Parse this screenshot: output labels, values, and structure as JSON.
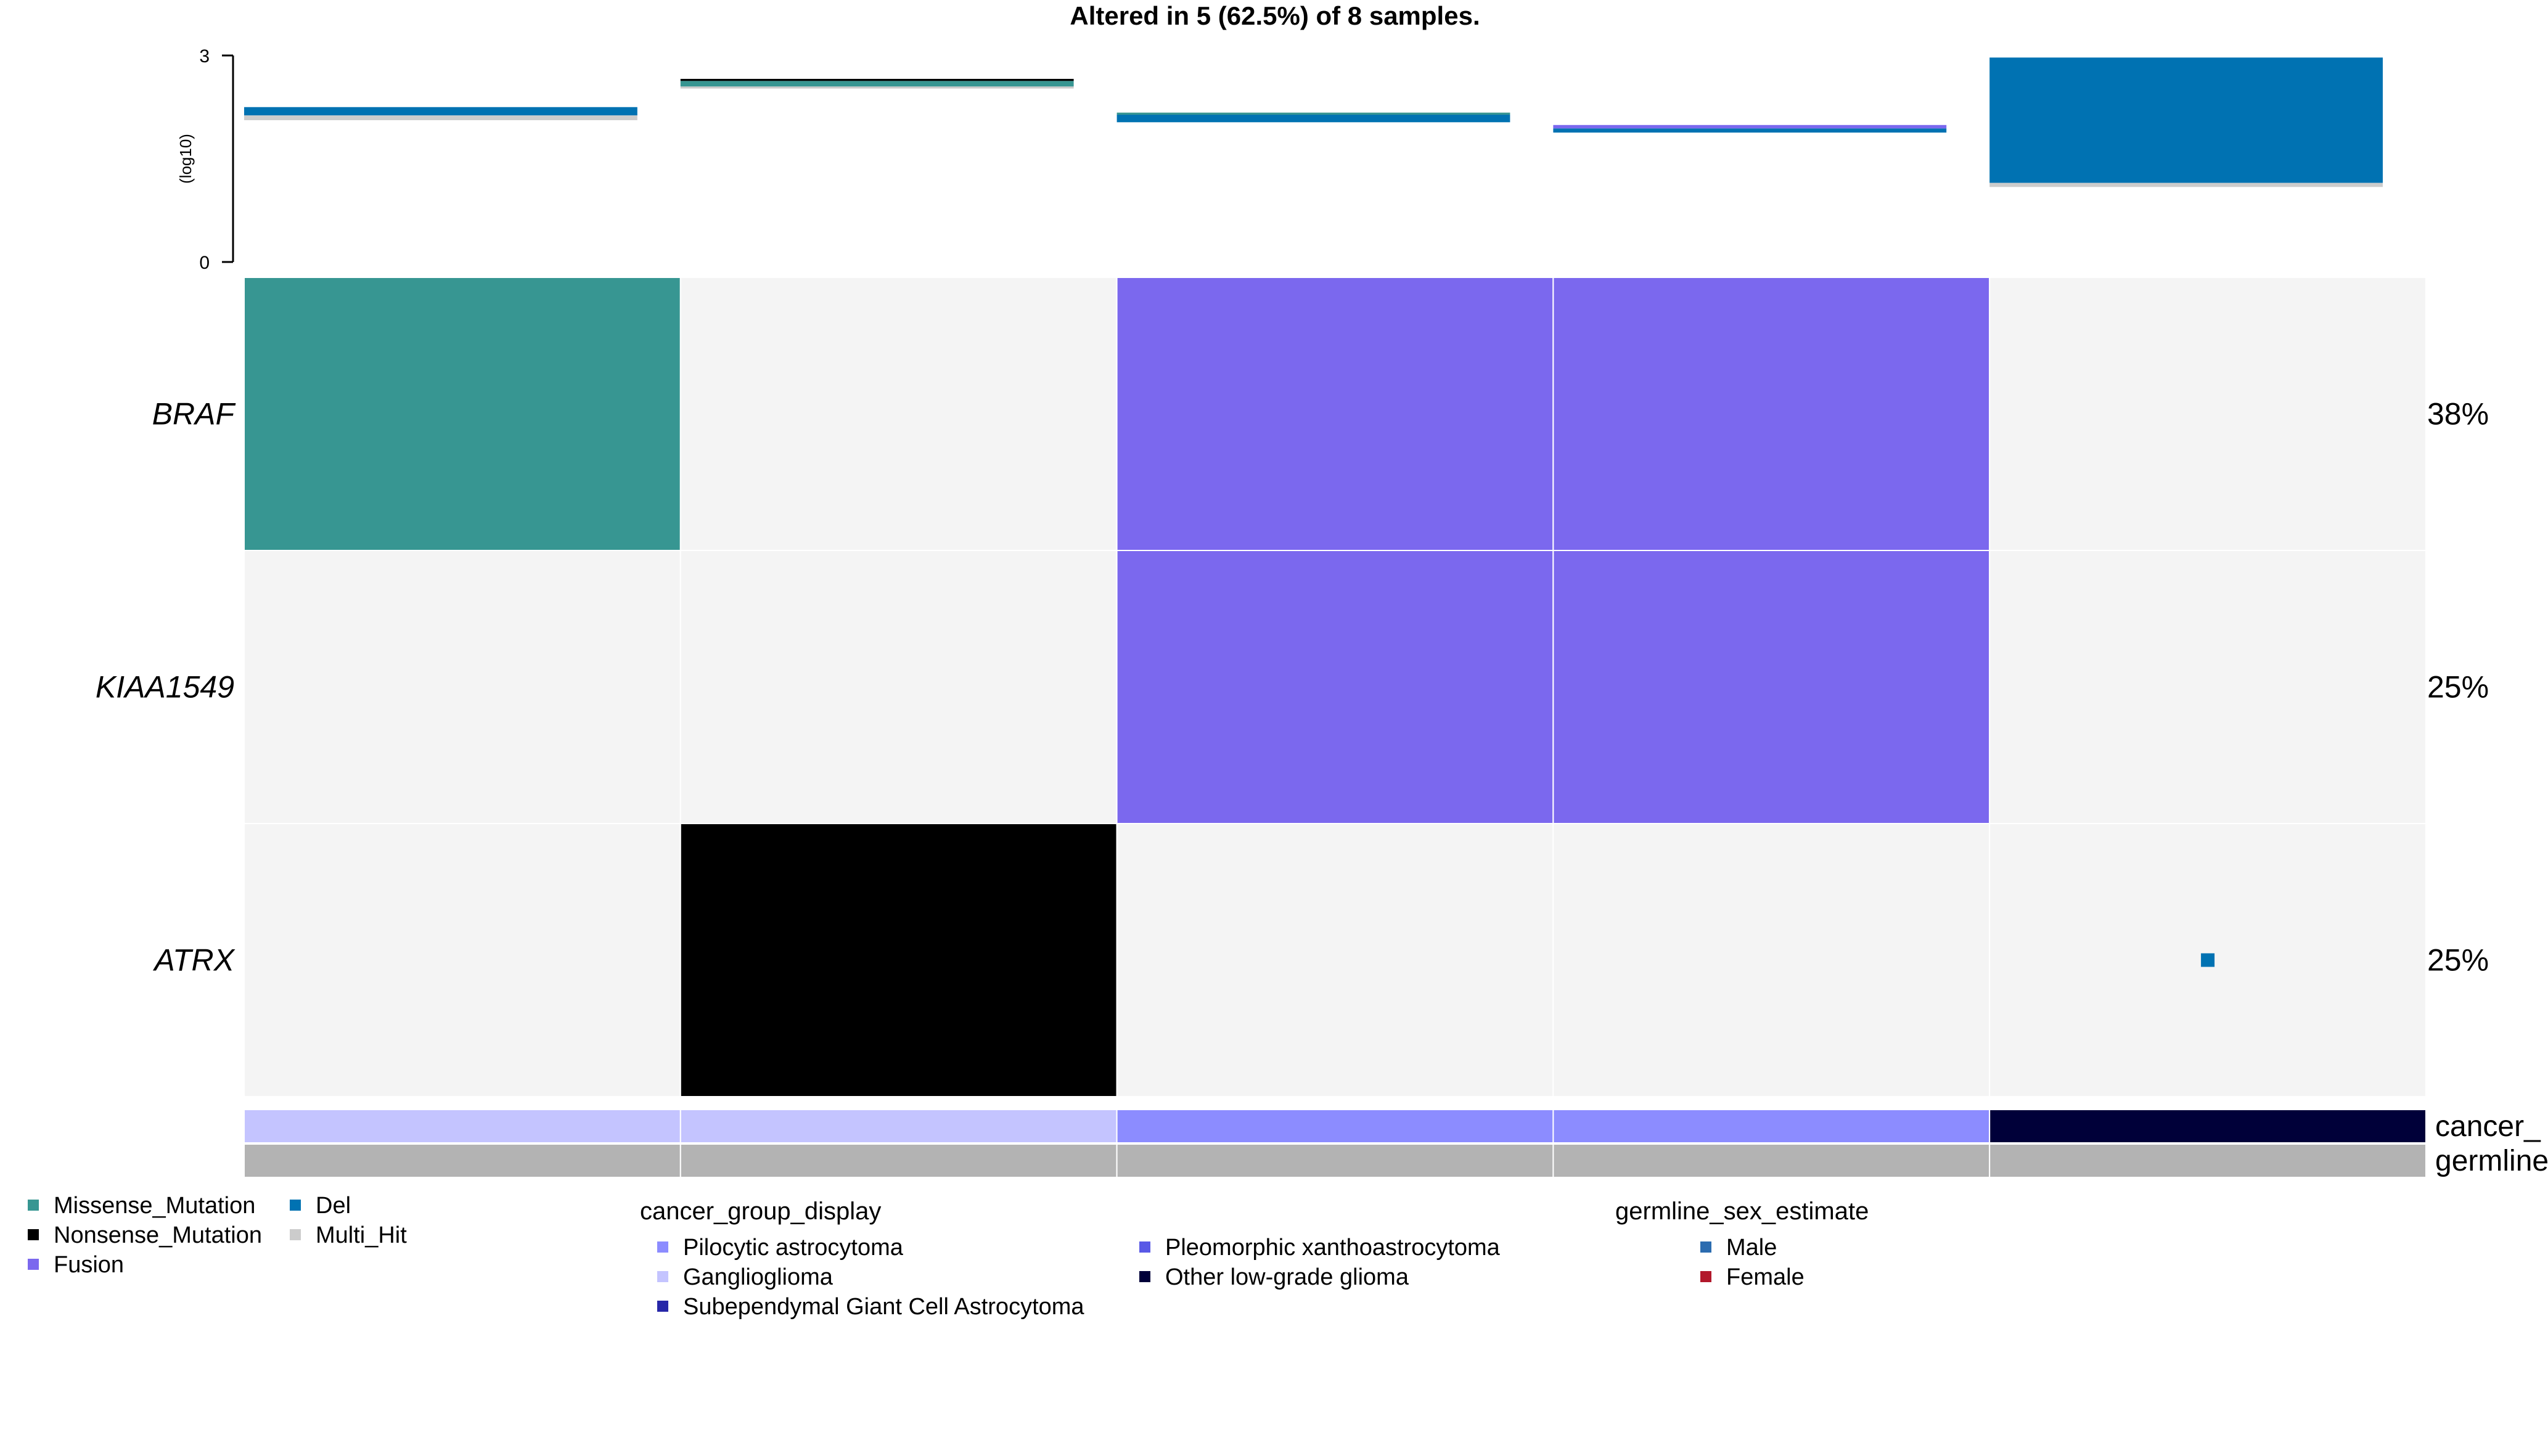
{
  "chart_data": {
    "type": "heatmap",
    "title": "Altered in 5 (62.5%) of 8 samples.",
    "top_bar": {
      "ylabel": "(log10)",
      "ylim": [
        0,
        3
      ],
      "ticks": [
        "0",
        "3"
      ],
      "samples": [
        {
          "stack": [
            {
              "class": "Multi_Hit",
              "from": 2.06,
              "to": 2.13
            },
            {
              "class": "Del",
              "from": 2.13,
              "to": 2.25
            }
          ]
        },
        {
          "stack": [
            {
              "class": "Multi_Hit",
              "from": 2.52,
              "to": 2.55
            },
            {
              "class": "Missense_Mutation",
              "from": 2.55,
              "to": 2.63
            },
            {
              "class": "Nonsense_Mutation",
              "from": 2.63,
              "to": 2.66
            }
          ]
        },
        {
          "stack": [
            {
              "class": "Del",
              "from": 2.03,
              "to": 2.14
            },
            {
              "class": "Missense_Mutation",
              "from": 2.14,
              "to": 2.17
            }
          ]
        },
        {
          "stack": [
            {
              "class": "Del",
              "from": 1.88,
              "to": 1.94
            },
            {
              "class": "Fusion",
              "from": 1.94,
              "to": 1.99
            }
          ]
        },
        {
          "stack": [
            {
              "class": "Multi_Hit",
              "from": 1.09,
              "to": 1.15
            },
            {
              "class": "Del",
              "from": 1.15,
              "to": 2.97
            }
          ]
        }
      ]
    },
    "genes": [
      "BRAF",
      "KIAA1549",
      "ATRX"
    ],
    "percentages": [
      "38%",
      "25%",
      "25%"
    ],
    "matrix": [
      [
        "Missense_Mutation",
        "",
        "Fusion",
        "Fusion",
        ""
      ],
      [
        "",
        "",
        "Fusion",
        "Fusion",
        ""
      ],
      [
        "",
        "Nonsense_Mutation",
        "",
        "",
        "Del"
      ]
    ],
    "annotations": [
      {
        "name": "cancer_group_display",
        "label": "cancer_",
        "values": [
          "Ganglioglioma",
          "Ganglioglioma",
          "Pilocytic astrocytoma",
          "Pilocytic astrocytoma",
          "Other low-grade glioma"
        ]
      },
      {
        "name": "germline_sex_estimate",
        "label": "germline",
        "values": [
          "NA",
          "NA",
          "NA",
          "NA",
          "NA"
        ]
      }
    ],
    "variant_colors": {
      "Missense_Mutation": "#379692",
      "Nonsense_Mutation": "#000000",
      "Fusion": "#7b68ee",
      "Del": "#0072b2",
      "Multi_Hit": "#cccccc"
    },
    "annotation_colors": {
      "Pilocytic astrocytoma": "#8c8cff",
      "Ganglioglioma": "#c4c4ff",
      "Subependymal Giant Cell Astrocytoma": "#2727a8",
      "Pleomorphic xanthoastrocytoma": "#5959e6",
      "Other low-grade glioma": "#000039",
      "Male": "#2b6cb0",
      "Female": "#b2182b",
      "NA": "#b3b3b3"
    },
    "empty_cell_color": "#f4f4f4",
    "legend": {
      "variants": [
        "Missense_Mutation",
        "Nonsense_Mutation",
        "Fusion",
        "Del",
        "Multi_Hit"
      ],
      "groups": [
        {
          "title": "cancer_group_display",
          "items": [
            "Pilocytic astrocytoma",
            "Ganglioglioma",
            "Subependymal Giant Cell Astrocytoma",
            "Pleomorphic xanthoastrocytoma",
            "Other low-grade glioma"
          ]
        },
        {
          "title": "germline_sex_estimate",
          "items": [
            "Male",
            "Female"
          ]
        }
      ]
    }
  }
}
